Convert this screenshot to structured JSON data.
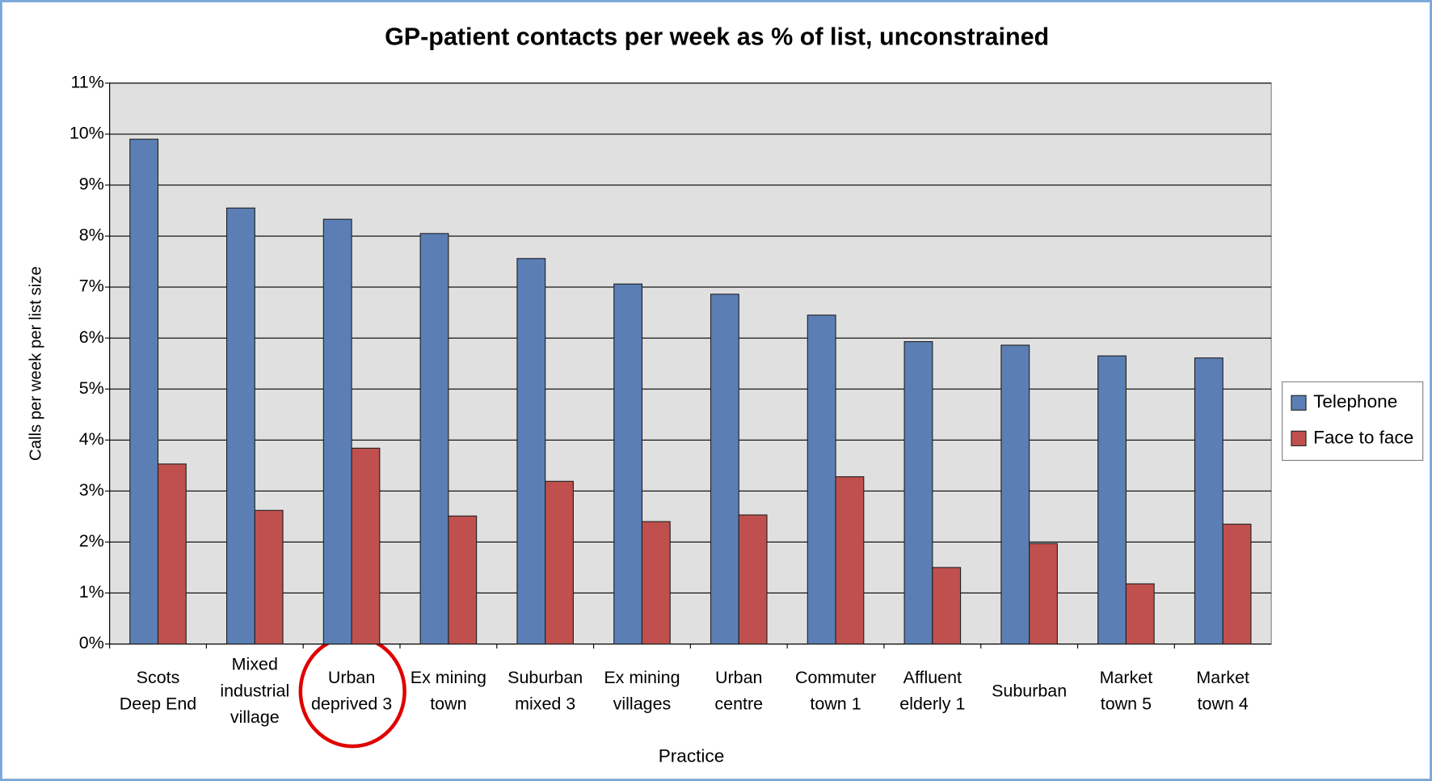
{
  "chart_data": {
    "type": "bar",
    "title": "GP-patient contacts per week as % of list, unconstrained",
    "x_label": "Practice",
    "y_label": "Calls per week per list size",
    "categories": [
      "Scots\nDeep End",
      "Mixed\nindustrial\nvillage",
      "Urban\ndeprived 3",
      "Ex mining\ntown",
      "Suburban\nmixed 3",
      "Ex mining\nvillages",
      "Urban\ncentre",
      "Commuter\ntown 1",
      "Affluent\nelderly 1",
      "Suburban",
      "Market\ntown 5",
      "Market\ntown 4"
    ],
    "series": [
      {
        "name": "Telephone",
        "color": "#5b7fb5",
        "values": [
          9.9,
          8.55,
          8.33,
          8.05,
          7.56,
          7.06,
          6.86,
          6.45,
          5.93,
          5.86,
          5.65,
          5.61
        ]
      },
      {
        "name": "Face to face",
        "color": "#c0504d",
        "values": [
          3.53,
          2.62,
          3.84,
          2.51,
          3.19,
          2.4,
          2.53,
          3.28,
          1.5,
          1.97,
          1.18,
          2.35
        ]
      }
    ],
    "ylim": [
      0,
      11
    ],
    "yticks": [
      {
        "value": 0,
        "label": "0%"
      },
      {
        "value": 1,
        "label": "1%"
      },
      {
        "value": 2,
        "label": "2%"
      },
      {
        "value": 3,
        "label": "3%"
      },
      {
        "value": 4,
        "label": "4%"
      },
      {
        "value": 5,
        "label": "5%"
      },
      {
        "value": 6,
        "label": "6%"
      },
      {
        "value": 7,
        "label": "7%"
      },
      {
        "value": 8,
        "label": "8%"
      },
      {
        "value": 9,
        "label": "9%"
      },
      {
        "value": 10,
        "label": "10%"
      },
      {
        "value": 11,
        "label": "11%"
      }
    ],
    "grid": true,
    "legend": "right"
  }
}
